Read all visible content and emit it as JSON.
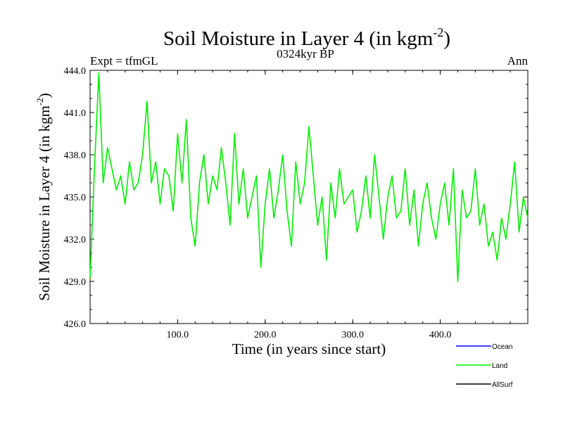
{
  "chart_data": {
    "type": "line",
    "title_main": "Soil Moisture in Layer 4 (in kgm",
    "title_sup": "-2",
    "title_close": ")",
    "subtitle_left": "Expt = tfmGL",
    "subtitle_center": "0324kyr BP",
    "subtitle_right": "Ann",
    "xlabel": "Time (in years since start)",
    "ylabel_main": "Soil Moisture in Layer 4 (in kgm",
    "ylabel_sup": "-2",
    "ylabel_close": ")",
    "xlim": [
      0,
      500
    ],
    "ylim": [
      426,
      444
    ],
    "xticks": [
      100,
      200,
      300,
      400
    ],
    "xtick_labels": [
      "100.0",
      "200.0",
      "300.0",
      "400.0"
    ],
    "yticks": [
      426,
      429,
      432,
      435,
      438,
      441,
      444
    ],
    "ytick_labels": [
      "426.0",
      "429.0",
      "432.0",
      "435.0",
      "438.0",
      "441.0",
      "444.0"
    ],
    "legend_position": "bottom-right",
    "legend": [
      {
        "name": "Ocean",
        "color": "#0000ff"
      },
      {
        "name": "Land",
        "color": "#00ee00"
      },
      {
        "name": "AllSurf",
        "color": "#000000"
      }
    ],
    "series": [
      {
        "name": "Land",
        "color": "#00ee00",
        "x": [
          0,
          5,
          10,
          15,
          20,
          25,
          30,
          35,
          40,
          45,
          50,
          55,
          60,
          65,
          70,
          75,
          80,
          85,
          90,
          95,
          100,
          105,
          110,
          115,
          120,
          125,
          130,
          135,
          140,
          145,
          150,
          155,
          160,
          165,
          170,
          175,
          180,
          185,
          190,
          195,
          200,
          205,
          210,
          215,
          220,
          225,
          230,
          235,
          240,
          245,
          250,
          255,
          260,
          265,
          270,
          275,
          280,
          285,
          290,
          295,
          300,
          305,
          310,
          315,
          320,
          325,
          330,
          335,
          340,
          345,
          350,
          355,
          360,
          365,
          370,
          375,
          380,
          385,
          390,
          395,
          400,
          405,
          410,
          415,
          420,
          425,
          430,
          435,
          440,
          445,
          450,
          455,
          460,
          465,
          470,
          475,
          480,
          485,
          490,
          495,
          500
        ],
        "values": [
          429.2,
          437.0,
          443.8,
          436.0,
          438.5,
          437.0,
          435.5,
          436.5,
          434.5,
          437.5,
          435.5,
          436.0,
          438.0,
          441.8,
          436.0,
          437.5,
          434.5,
          437.0,
          436.5,
          434.0,
          439.5,
          436.0,
          440.5,
          433.5,
          431.5,
          436.0,
          438.0,
          434.5,
          436.5,
          435.5,
          438.5,
          436.0,
          433.0,
          439.5,
          434.5,
          437.0,
          433.5,
          435.0,
          436.5,
          430.0,
          434.5,
          437.0,
          433.5,
          435.5,
          438.0,
          434.0,
          431.5,
          437.5,
          434.5,
          436.0,
          440.0,
          436.5,
          433.0,
          435.0,
          430.5,
          436.0,
          433.5,
          437.0,
          434.5,
          435.0,
          435.5,
          432.5,
          434.0,
          436.5,
          433.5,
          438.0,
          435.0,
          432.0,
          435.0,
          436.5,
          433.5,
          434.0,
          437.0,
          433.0,
          435.5,
          431.5,
          434.5,
          436.0,
          433.5,
          432.0,
          434.5,
          436.0,
          433.0,
          437.0,
          429.0,
          435.5,
          433.5,
          434.0,
          437.0,
          433.0,
          434.5,
          431.5,
          432.5,
          430.5,
          433.5,
          432.0,
          434.5,
          437.5,
          432.5,
          435.0,
          433.5
        ]
      }
    ]
  }
}
